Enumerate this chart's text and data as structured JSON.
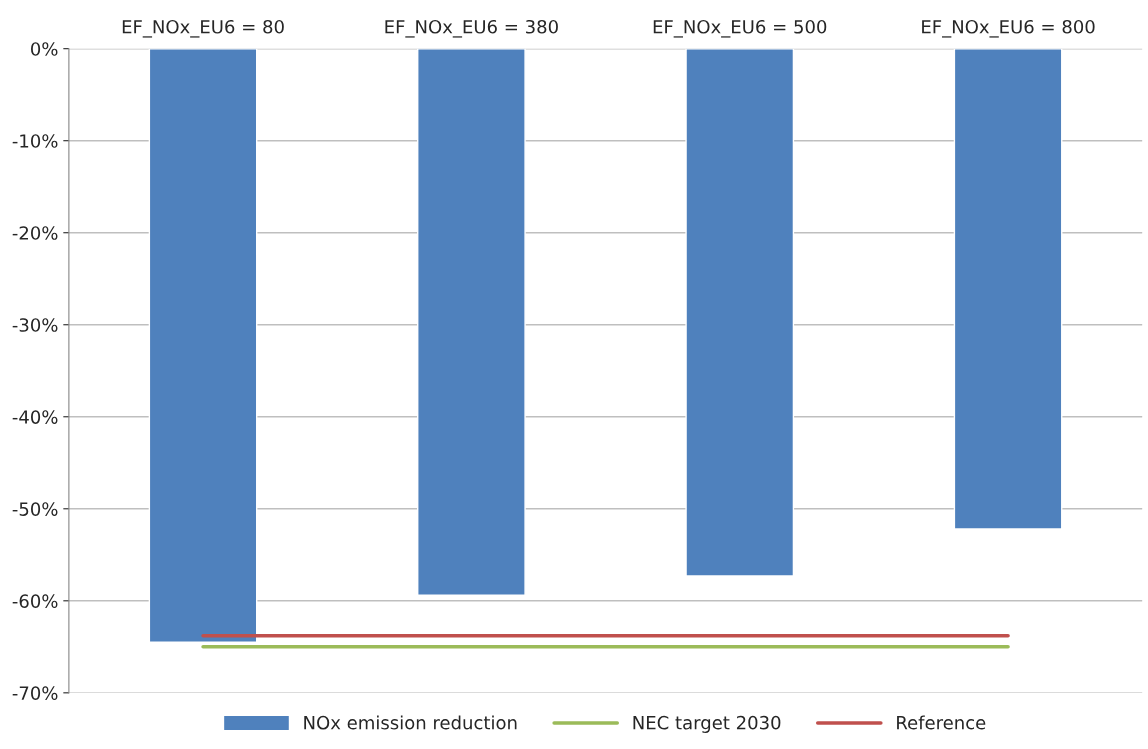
{
  "chart_data": {
    "type": "bar",
    "categories": [
      "EF_NOx_EU6 = 80",
      "EF_NOx_EU6 = 380",
      "EF_NOx_EU6 = 500",
      "EF_NOx_EU6 = 800"
    ],
    "series": [
      {
        "name": "NOx emission reduction",
        "color": "#4f81bd",
        "values": [
          -64.5,
          -59.4,
          -57.3,
          -52.2
        ]
      },
      {
        "name": "NEC target 2030",
        "type": "line",
        "color": "#9bbb59",
        "values": [
          -65,
          -65,
          -65,
          -65
        ]
      },
      {
        "name": "Reference",
        "type": "line",
        "color": "#c0504d",
        "values": [
          -63.8,
          -63.8,
          -63.8,
          -63.8
        ]
      }
    ],
    "ylim": [
      -70,
      0
    ],
    "yticks": [
      {
        "value": -70,
        "label": "-70%"
      },
      {
        "value": -60,
        "label": "-60%"
      },
      {
        "value": -50,
        "label": "-50%"
      },
      {
        "value": -40,
        "label": "-40%"
      },
      {
        "value": -30,
        "label": "-30%"
      },
      {
        "value": -20,
        "label": "-20%"
      },
      {
        "value": -10,
        "label": "-10%"
      },
      {
        "value": 0,
        "label": "0%"
      }
    ],
    "grid": "y",
    "legend": "bottom",
    "marker": "none"
  }
}
